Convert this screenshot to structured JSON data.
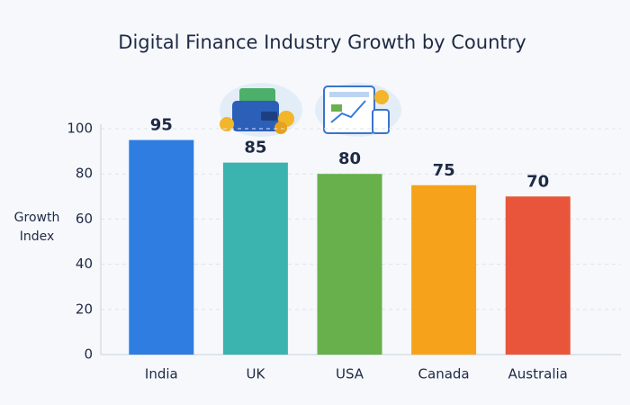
{
  "chart_data": {
    "type": "bar",
    "title": "Digital Finance Industry Growth by Country",
    "y_label": "Growth Index",
    "categories": [
      "India",
      "UK",
      "USA",
      "Canada",
      "Australia"
    ],
    "values": [
      95,
      85,
      80,
      75,
      70
    ],
    "colors": [
      "#2f7de1",
      "#3bb4b0",
      "#67b04b",
      "#f6a31b",
      "#e9553b"
    ],
    "ylim": [
      0,
      100
    ],
    "yticks": [
      0,
      20,
      40,
      60,
      80,
      100
    ],
    "grid": true
  }
}
